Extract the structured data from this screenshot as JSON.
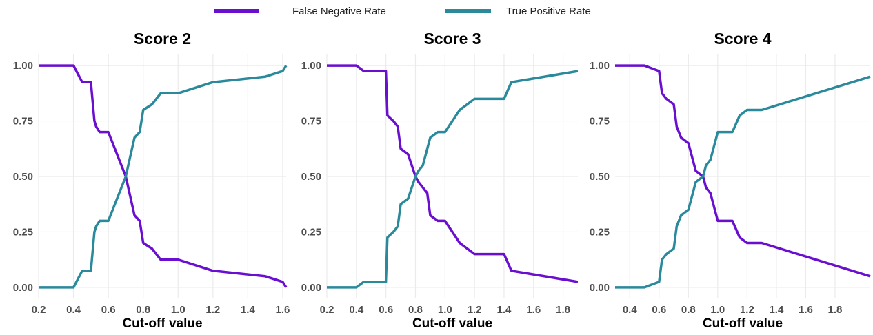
{
  "chart_data": [
    {
      "type": "line",
      "title": "Score 2",
      "x_label": "Cut-off value",
      "x": [
        0.2,
        0.4,
        0.45,
        0.5,
        0.52,
        0.53,
        0.55,
        0.58,
        0.6,
        0.7,
        0.75,
        0.78,
        0.8,
        0.85,
        0.9,
        1.0,
        1.2,
        1.5,
        1.6,
        1.62
      ],
      "series": [
        {
          "name": "False Negative Rate",
          "color": "#6a0fcf",
          "values": [
            1,
            1,
            0.925,
            0.925,
            0.75,
            0.725,
            0.7,
            0.7,
            0.7,
            0.5,
            0.325,
            0.3,
            0.2,
            0.175,
            0.125,
            0.125,
            0.075,
            0.05,
            0.025,
            0
          ]
        },
        {
          "name": "True Positive Rate",
          "color": "#2a8a9c",
          "values": [
            0,
            0,
            0.075,
            0.075,
            0.25,
            0.275,
            0.3,
            0.3,
            0.3,
            0.5,
            0.675,
            0.7,
            0.8,
            0.825,
            0.875,
            0.875,
            0.925,
            0.95,
            0.975,
            1
          ]
        }
      ],
      "xlim": [
        0.2,
        1.62
      ],
      "xticks": [
        0.2,
        0.4,
        0.6,
        0.8,
        {
          "value": 1,
          "label": "1.0"
        },
        1.2,
        1.4,
        1.6
      ],
      "ylim": [
        -0.05,
        1.05
      ],
      "yticks": [
        {
          "value": 0,
          "label": "0.00"
        },
        {
          "value": 0.25,
          "label": "0.25"
        },
        {
          "value": 0.5,
          "label": "0.50"
        },
        {
          "value": 0.75,
          "label": "0.75"
        },
        {
          "value": 1,
          "label": "1.00"
        }
      ],
      "grid": true
    },
    {
      "type": "line",
      "title": "Score 3",
      "x_label": "Cut-off value",
      "x": [
        0.2,
        0.4,
        0.45,
        0.6,
        0.61,
        0.65,
        0.68,
        0.7,
        0.75,
        0.8,
        0.82,
        0.85,
        0.88,
        0.9,
        0.95,
        1.0,
        1.1,
        1.2,
        1.4,
        1.45,
        1.9
      ],
      "series": [
        {
          "color": "#6a0fcf",
          "values": [
            1,
            1,
            0.975,
            0.975,
            0.775,
            0.75,
            0.725,
            0.625,
            0.6,
            0.5,
            0.475,
            0.45,
            0.425,
            0.325,
            0.3,
            0.3,
            0.2,
            0.15,
            0.15,
            0.075,
            0.025
          ]
        },
        {
          "color": "#2a8a9c",
          "values": [
            0,
            0,
            0.025,
            0.025,
            0.225,
            0.25,
            0.275,
            0.375,
            0.4,
            0.5,
            0.525,
            0.55,
            0.625,
            0.675,
            0.7,
            0.7,
            0.8,
            0.85,
            0.85,
            0.925,
            0.975
          ]
        }
      ],
      "xlim": [
        0.2,
        1.9
      ],
      "xticks": [
        0.2,
        0.4,
        0.6,
        0.8,
        {
          "value": 1,
          "label": "1.0"
        },
        1.2,
        1.4,
        1.6,
        1.8
      ],
      "ylim": [
        -0.05,
        1.05
      ],
      "yticks": [
        {
          "value": 0,
          "label": "0.00"
        },
        {
          "value": 0.25,
          "label": "0.25"
        },
        {
          "value": 0.5,
          "label": "0.50"
        },
        {
          "value": 0.75,
          "label": "0.75"
        },
        {
          "value": 1,
          "label": "1.00"
        }
      ],
      "grid": true
    },
    {
      "type": "line",
      "title": "Score 4",
      "x_label": "Cut-off value",
      "x": [
        0.3,
        0.5,
        0.6,
        0.62,
        0.65,
        0.7,
        0.72,
        0.75,
        0.8,
        0.85,
        0.9,
        0.92,
        0.95,
        1.0,
        1.1,
        1.15,
        1.2,
        1.3,
        2.04
      ],
      "series": [
        {
          "color": "#6a0fcf",
          "values": [
            1,
            1,
            0.975,
            0.875,
            0.85,
            0.825,
            0.725,
            0.675,
            0.65,
            0.525,
            0.5,
            0.45,
            0.425,
            0.3,
            0.3,
            0.225,
            0.2,
            0.2,
            0.05
          ]
        },
        {
          "color": "#2a8a9c",
          "values": [
            0,
            0,
            0.025,
            0.125,
            0.15,
            0.175,
            0.275,
            0.325,
            0.35,
            0.475,
            0.5,
            0.55,
            0.575,
            0.7,
            0.7,
            0.775,
            0.8,
            0.8,
            0.95
          ]
        }
      ],
      "xlim": [
        0.3,
        2.04
      ],
      "xticks": [
        0.4,
        0.6,
        0.8,
        {
          "value": 1,
          "label": "1.0"
        },
        1.2,
        1.4,
        1.6,
        1.8
      ],
      "ylim": [
        -0.05,
        1.05
      ],
      "yticks": [
        {
          "value": 0,
          "label": "0.00"
        },
        {
          "value": 0.25,
          "label": "0.25"
        },
        {
          "value": 0.5,
          "label": "0.50"
        },
        {
          "value": 0.75,
          "label": "0.75"
        },
        {
          "value": 1,
          "label": "1.00"
        }
      ],
      "grid": true
    }
  ]
}
